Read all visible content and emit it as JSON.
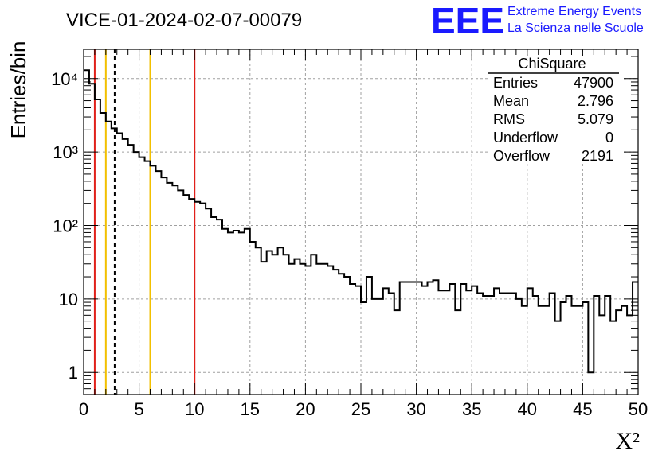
{
  "header": {
    "title": "VICE-01-2024-02-07-00079",
    "logo_big": "EEE",
    "logo_line1": "Extreme Energy Events",
    "logo_line2": "La Scienza nelle Scuole"
  },
  "stats": {
    "title": "ChiSquare",
    "rows": [
      {
        "label": "Entries",
        "value": "47900"
      },
      {
        "label": "Mean",
        "value": "2.796"
      },
      {
        "label": "RMS",
        "value": "5.079"
      },
      {
        "label": "Underflow",
        "value": "0"
      },
      {
        "label": "Overflow",
        "value": "2191"
      }
    ]
  },
  "chart_data": {
    "type": "histogram",
    "title": "VICE-01-2024-02-07-00079",
    "xlabel": "X²",
    "ylabel": "Entries/bin",
    "xlim": [
      0,
      50
    ],
    "ylim": [
      0.5,
      25000
    ],
    "ylog": true,
    "grid": true,
    "bin_width": 0.5,
    "x_ticks": [
      "0",
      "5",
      "10",
      "15",
      "20",
      "25",
      "30",
      "35",
      "40",
      "45",
      "50"
    ],
    "y_ticks": [
      {
        "value": 1,
        "label": "1"
      },
      {
        "value": 10,
        "label": "10"
      },
      {
        "value": 100,
        "label": "10²"
      },
      {
        "value": 1000,
        "label": "10³"
      },
      {
        "value": 10000,
        "label": "10⁴"
      }
    ],
    "bin_contents": [
      13000,
      8500,
      5200,
      3400,
      2600,
      2100,
      1800,
      1500,
      1250,
      1000,
      850,
      750,
      650,
      550,
      450,
      380,
      350,
      300,
      260,
      230,
      210,
      200,
      170,
      130,
      120,
      90,
      80,
      85,
      80,
      90,
      60,
      50,
      32,
      45,
      40,
      50,
      40,
      30,
      35,
      30,
      28,
      40,
      30,
      30,
      28,
      25,
      22,
      20,
      16,
      15,
      9,
      20,
      10,
      10,
      14,
      12,
      7,
      17,
      17,
      17,
      17,
      15,
      17,
      18,
      13,
      13,
      16,
      7,
      16,
      13,
      15,
      12,
      11,
      11,
      14,
      12,
      12,
      12,
      10,
      8,
      14,
      11,
      8,
      8,
      12,
      5,
      9,
      11,
      8,
      8,
      9,
      1,
      11,
      6,
      11,
      5,
      7,
      8,
      6,
      17
    ],
    "vertical_lines": [
      {
        "x": 1,
        "color": "#e0201a",
        "style": "solid"
      },
      {
        "x": 2,
        "color": "#f2c000",
        "style": "solid"
      },
      {
        "x": 2.796,
        "color": "#000000",
        "style": "dashed"
      },
      {
        "x": 6,
        "color": "#f2c000",
        "style": "solid"
      },
      {
        "x": 10,
        "color": "#e0201a",
        "style": "solid"
      }
    ]
  }
}
